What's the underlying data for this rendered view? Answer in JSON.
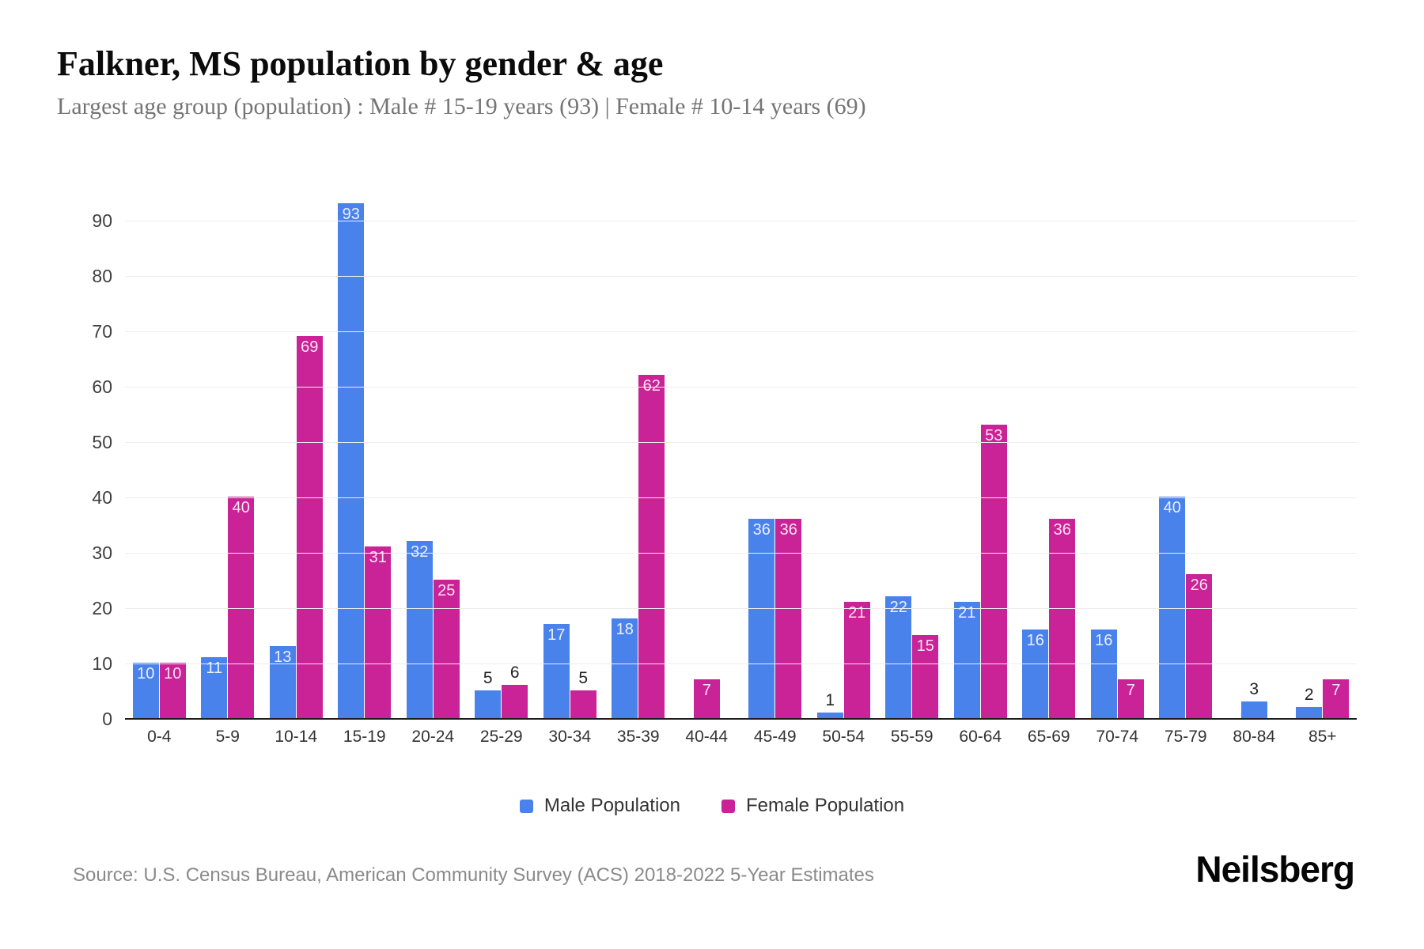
{
  "header": {
    "title": "Falkner, MS population by gender & age",
    "subtitle": "Largest age group (population) : Male # 15-19 years (93) | Female # 10-14 years (69)"
  },
  "chart_data": {
    "type": "bar",
    "title": "Falkner, MS population by gender & age",
    "xlabel": "",
    "ylabel": "",
    "categories": [
      "0-4",
      "5-9",
      "10-14",
      "15-19",
      "20-24",
      "25-29",
      "30-34",
      "35-39",
      "40-44",
      "45-49",
      "50-54",
      "55-59",
      "60-64",
      "65-69",
      "70-74",
      "75-79",
      "80-84",
      "85+"
    ],
    "series": [
      {
        "name": "Male Population",
        "color": "#4a82ec",
        "values": [
          10,
          11,
          13,
          93,
          32,
          5,
          17,
          18,
          0,
          36,
          1,
          22,
          21,
          16,
          16,
          40,
          3,
          2
        ]
      },
      {
        "name": "Female Population",
        "color": "#c92397",
        "values": [
          10,
          40,
          69,
          31,
          25,
          6,
          5,
          62,
          7,
          36,
          21,
          15,
          53,
          36,
          7,
          26,
          0,
          7
        ]
      }
    ],
    "ylim": [
      0,
      95
    ],
    "yticks": [
      0,
      10,
      20,
      30,
      40,
      50,
      60,
      70,
      80,
      90
    ],
    "grid": true,
    "legend_position": "bottom",
    "value_labels": true,
    "label_inside_min_value": 7
  },
  "colors": {
    "male": "#4a82ec",
    "female": "#c92397",
    "gridline": "#ededed",
    "axis_line": "#1c1c1c",
    "title_text": "#0b0b0b",
    "subtitle_text": "#757575",
    "axis_text": "#3f3f3f",
    "source_text": "#8a8a8a"
  },
  "footer": {
    "source": "Source: U.S. Census Bureau, American Community Survey (ACS) 2018-2022 5-Year Estimates",
    "brand": "Neilsberg"
  }
}
